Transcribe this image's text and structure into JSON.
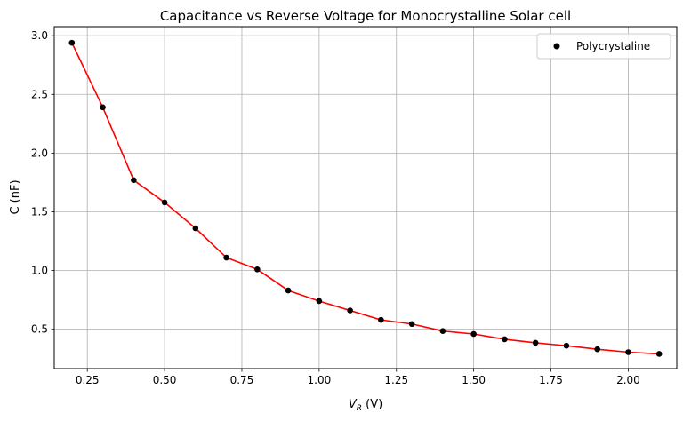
{
  "chart_data": {
    "type": "line",
    "title": "Capacitance vs Reverse Voltage for Monocrystalline Solar cell",
    "xlabel_main": "V",
    "xlabel_sub": "R",
    "xlabel_unit": " (V)",
    "ylabel": "C (nF)",
    "xlim": [
      0.143,
      2.157
    ],
    "ylim": [
      0.165,
      3.077
    ],
    "xticks": [
      0.25,
      0.5,
      0.75,
      1.0,
      1.25,
      1.5,
      1.75,
      2.0
    ],
    "xtick_labels": [
      "0.25",
      "0.50",
      "0.75",
      "1.00",
      "1.25",
      "1.50",
      "1.75",
      "2.00"
    ],
    "yticks": [
      0.5,
      1.0,
      1.5,
      2.0,
      2.5,
      3.0
    ],
    "ytick_labels": [
      "0.5",
      "1.0",
      "1.5",
      "2.0",
      "2.5",
      "3.0"
    ],
    "grid": true,
    "legend": {
      "position": "top-right",
      "label": "Polycrystaline"
    },
    "series": [
      {
        "name": "Polycrystaline",
        "line_color": "#ff0000",
        "marker_color": "#000000",
        "x": [
          0.2,
          0.3,
          0.4,
          0.5,
          0.6,
          0.7,
          0.8,
          0.9,
          1.0,
          1.1,
          1.2,
          1.3,
          1.4,
          1.5,
          1.6,
          1.7,
          1.8,
          1.9,
          2.0,
          2.1
        ],
        "y": [
          2.94,
          2.39,
          1.77,
          1.58,
          1.36,
          1.11,
          1.01,
          0.83,
          0.74,
          0.66,
          0.58,
          0.545,
          0.485,
          0.46,
          0.415,
          0.385,
          0.36,
          0.33,
          0.305,
          0.29
        ]
      }
    ]
  }
}
